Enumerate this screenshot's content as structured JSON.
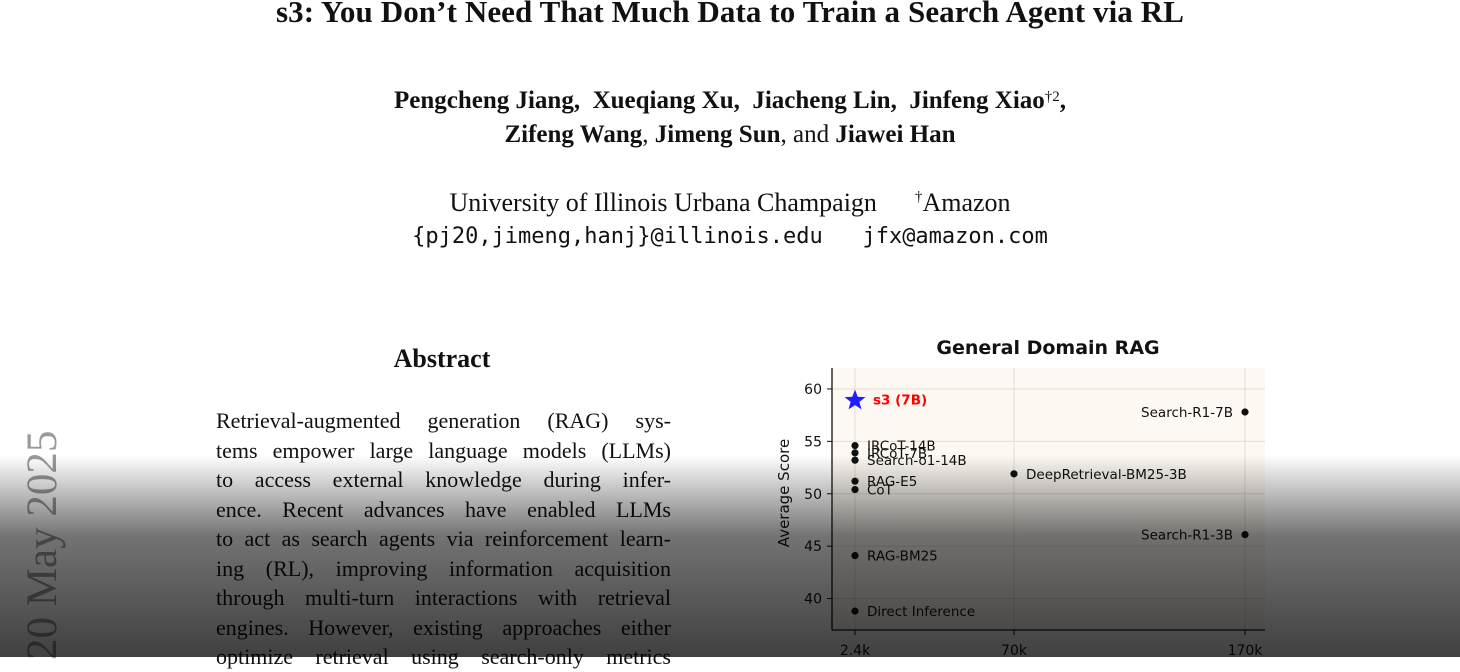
{
  "paper": {
    "title": "s3: You Don’t Need That Much Data to Train a Search Agent via RL",
    "authors_line1": [
      {
        "name": "Pengcheng Jiang,"
      },
      {
        "name": "Xueqiang Xu,"
      },
      {
        "name": "Jiacheng Lin,"
      },
      {
        "name": "Jinfeng Xiao",
        "sup": "†2",
        "after": ","
      }
    ],
    "authors_line2": {
      "a": "Zifeng Wang",
      "sep1": ",",
      "b": "Jimeng Sun",
      "sep2": ", and",
      "c": "Jiawei Han"
    },
    "affiliations": {
      "university": "University of Illinois Urbana Champaign",
      "amazon_mark": "†",
      "amazon": "Amazon"
    },
    "emails": {
      "illinois": "{pj20,jimeng,hanj}@illinois.edu",
      "amazon": "jfx@amazon.com"
    },
    "abstract_heading": "Abstract",
    "abstract_lines": [
      "Retrieval-augmented generation (RAG) sys-",
      "tems empower large language models (LLMs)",
      "to access external knowledge during infer-",
      "ence. Recent advances have enabled LLMs",
      "to act as search agents via reinforcement learn-",
      "ing (RL), improving information acquisition",
      "through multi-turn interactions with retrieval",
      "engines. However, existing approaches either",
      "optimize retrieval using search-only metrics"
    ],
    "arxiv_stamp": "20 May 2025"
  },
  "chart_data": {
    "type": "scatter",
    "title": "General Domain RAG",
    "ylabel": "Average Score",
    "xlabel": "",
    "x_ticks": [
      "2.4k",
      "70k",
      "170k"
    ],
    "y_ticks": [
      40,
      45,
      50,
      55,
      60
    ],
    "ylim": [
      37,
      62
    ],
    "grid": true,
    "points": [
      {
        "label": "s3 (7B)",
        "x": "2.4k",
        "y": 58.9,
        "highlight": true,
        "color": "#ff0000",
        "marker_color": "#1f1fff"
      },
      {
        "label": "IRCoT-14B",
        "x": "2.4k",
        "y": 54.6
      },
      {
        "label": "IRCoT-7B",
        "x": "2.4k",
        "y": 53.9
      },
      {
        "label": "Search-o1-14B",
        "x": "2.4k",
        "y": 53.2
      },
      {
        "label": "RAG-E5",
        "x": "2.4k",
        "y": 51.2
      },
      {
        "label": "CoT",
        "x": "2.4k",
        "y": 50.4
      },
      {
        "label": "RAG-BM25",
        "x": "2.4k",
        "y": 44.1
      },
      {
        "label": "Direct Inference",
        "x": "2.4k",
        "y": 38.8
      },
      {
        "label": "DeepRetrieval-BM25-3B",
        "x": "70k",
        "y": 51.9
      },
      {
        "label": "Search-R1-7B",
        "x": "170k",
        "y": 57.8
      },
      {
        "label": "Search-R1-3B",
        "x": "170k",
        "y": 46.1
      }
    ]
  }
}
